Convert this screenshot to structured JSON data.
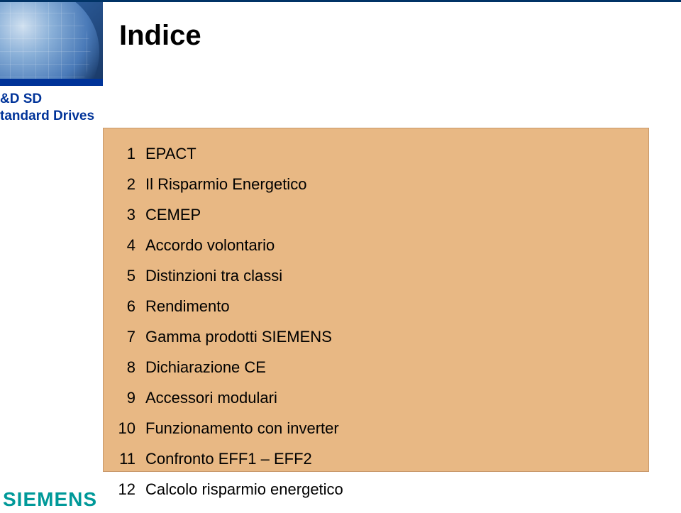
{
  "title": "Indice",
  "department": {
    "line1": "&D SD",
    "line2": "tandard Drives"
  },
  "toc": [
    {
      "num": "1",
      "label": "EPACT"
    },
    {
      "num": "2",
      "label": "Il Risparmio Energetico"
    },
    {
      "num": "3",
      "label": "CEMEP"
    },
    {
      "num": "4",
      "label": "Accordo volontario"
    },
    {
      "num": "5",
      "label": "Distinzioni tra classi"
    },
    {
      "num": "6",
      "label": "Rendimento"
    },
    {
      "num": "7",
      "label": "Gamma prodotti SIEMENS"
    },
    {
      "num": "8",
      "label": "Dichiarazione CE"
    },
    {
      "num": "9",
      "label": "Accessori modulari"
    },
    {
      "num": "10",
      "label": " Funzionamento con inverter"
    },
    {
      "num": "11",
      "label": "Confronto EFF1 – EFF2"
    },
    {
      "num": "12",
      "label": "Calcolo risparmio energetico"
    }
  ],
  "logo_text": "SIEMENS",
  "colors": {
    "toc_bg": "#e8b884",
    "toc_border": "#c8986a",
    "brand_blue": "#003399",
    "logo_teal": "#009999"
  }
}
